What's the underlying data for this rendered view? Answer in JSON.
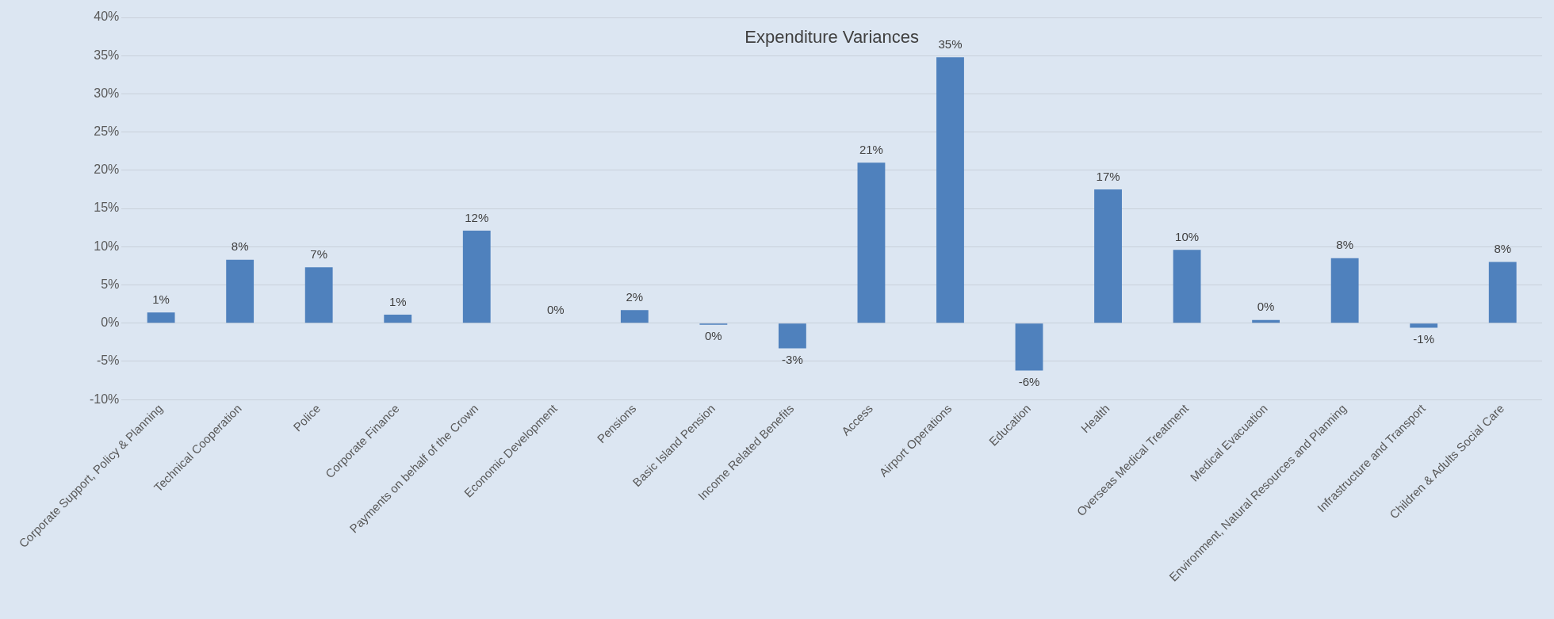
{
  "chart_data": {
    "type": "bar",
    "title": "Expenditure Variances",
    "categories": [
      "Corporate Support, Policy & Planning",
      "Technical Cooperation",
      "Police",
      "Corporate Finance",
      "Payments on behalf of the Crown",
      "Economic Development",
      "Pensions",
      "Basic Island Pension",
      "Income Related Benefits",
      "Access",
      "Airport Operations",
      "Education",
      "Health",
      "Overseas Medical Treatment",
      "Medical Evacuation",
      "Environment, Natural Resources and Planning",
      "Infrastructure and Transport",
      "Children & Adults Social Care"
    ],
    "values": [
      1.4,
      8.3,
      7.3,
      1.1,
      12.1,
      0,
      1.7,
      -0.2,
      -3.3,
      21,
      34.8,
      -6.2,
      17.5,
      9.6,
      0.4,
      8.5,
      -0.6,
      8
    ],
    "value_labels": [
      "1%",
      "8%",
      "7%",
      "1%",
      "12%",
      "0%",
      "2%",
      "0%",
      "-3%",
      "21%",
      "35%",
      "-6%",
      "17%",
      "10%",
      "0%",
      "8%",
      "-1%",
      "8%"
    ],
    "color": "#4f81bd",
    "ylim": [
      -10,
      40
    ],
    "yticks": [
      {
        "value": -10,
        "label": "-10%"
      },
      {
        "value": -5,
        "label": "-5%"
      },
      {
        "value": 0,
        "label": "0%"
      },
      {
        "value": 5,
        "label": "5%"
      },
      {
        "value": 10,
        "label": "10%"
      },
      {
        "value": 15,
        "label": "15%"
      },
      {
        "value": 20,
        "label": "20%"
      },
      {
        "value": 25,
        "label": "25%"
      },
      {
        "value": 30,
        "label": "30%"
      },
      {
        "value": 35,
        "label": "35%"
      },
      {
        "value": 40,
        "label": "40%"
      }
    ],
    "grid": "y"
  }
}
